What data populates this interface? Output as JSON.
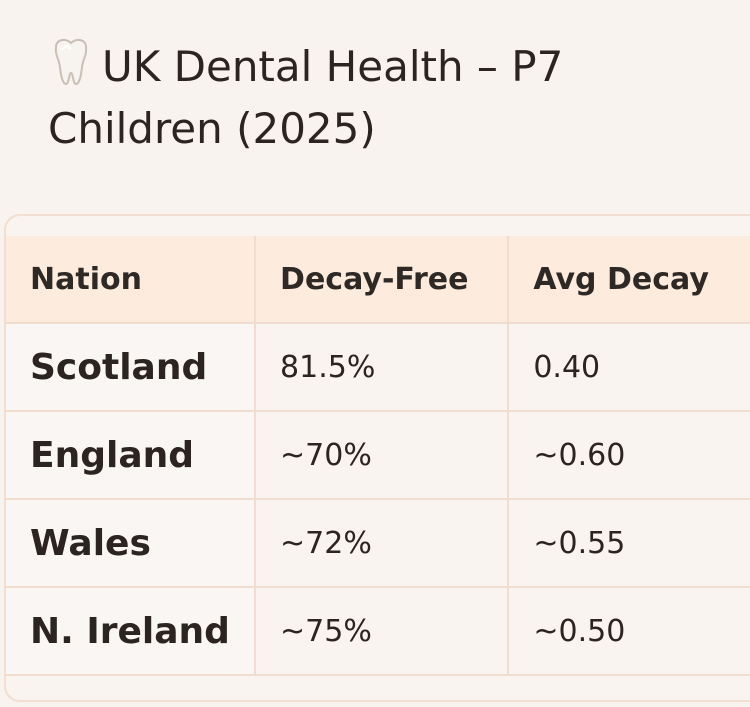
{
  "header": {
    "icon": "tooth-icon",
    "title": "UK Dental Health – P7 Children (2025)"
  },
  "table": {
    "columns": [
      "Nation",
      "Decay-Free",
      "Avg Decay"
    ],
    "rows": [
      {
        "nation": "Scotland",
        "decay_free": "81.5%",
        "avg_decay": "0.40"
      },
      {
        "nation": "England",
        "decay_free": "~70%",
        "avg_decay": "~0.60"
      },
      {
        "nation": "Wales",
        "decay_free": "~72%",
        "avg_decay": "~0.55"
      },
      {
        "nation": "N. Ireland",
        "decay_free": "~75%",
        "avg_decay": "~0.50"
      }
    ]
  },
  "colors": {
    "background": "#f8f3ef",
    "header_row": "#fdebde",
    "border": "#f0ddd0",
    "text": "#2c2420"
  }
}
